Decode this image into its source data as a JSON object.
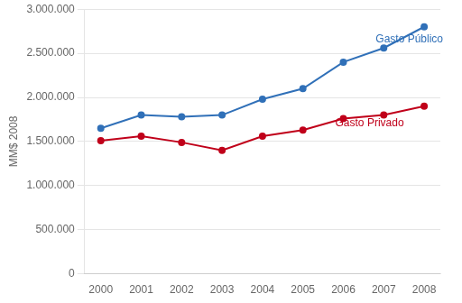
{
  "chart_data": {
    "type": "line",
    "x": [
      2000,
      2001,
      2002,
      2003,
      2004,
      2005,
      2006,
      2007,
      2008
    ],
    "series": [
      {
        "color": "#3070b8",
        "values": [
          1650000,
          1800000,
          1780000,
          1800000,
          1980000,
          2100000,
          2400000,
          2560000,
          2800000
        ]
      },
      {
        "color": "#c0001a",
        "values": [
          1510000,
          1560000,
          1490000,
          1400000,
          1560000,
          1630000,
          1760000,
          1800000,
          1900000
        ]
      }
    ],
    "y_label": "MM$ 2008",
    "xlim": [
      1999.6,
      2008.4
    ],
    "xticks": [
      2000,
      2001,
      2002,
      2003,
      2004,
      2005,
      2006,
      2007,
      2008
    ],
    "ylim": [
      0,
      3000000
    ],
    "yticks": [
      0,
      {
        "value": 500000,
        "label": "500.000"
      },
      {
        "value": 1000000,
        "label": "1.000.000"
      },
      {
        "value": 1500000,
        "label": "1.500.000"
      },
      {
        "value": 2000000,
        "label": "2.000.000"
      },
      {
        "value": 2500000,
        "label": "2.500.000"
      },
      {
        "value": 3000000,
        "label": "3.000.000"
      }
    ],
    "annotations": [
      {
        "text": "Gasto Público",
        "x": 2006.8,
        "y": 2620000,
        "color": "#3070b8"
      },
      {
        "text": "Gasto Privado",
        "x": 2005.8,
        "y": 1670000,
        "color": "#c0001a"
      }
    ],
    "grid": "y"
  }
}
